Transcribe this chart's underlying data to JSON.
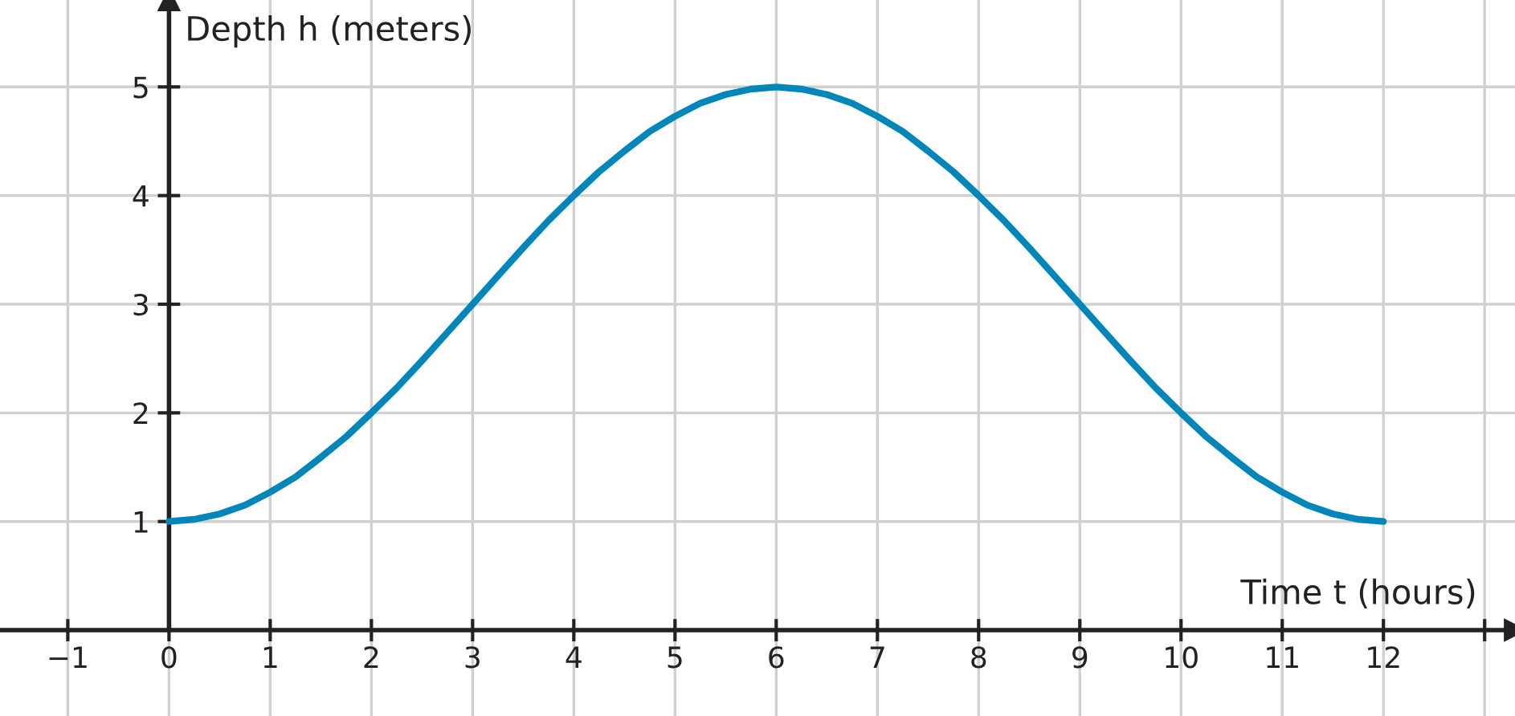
{
  "chart_data": {
    "type": "line",
    "xlabel": "Time t (hours)",
    "ylabel": "Depth h (meters)",
    "x": [
      0,
      0.25,
      0.5,
      0.75,
      1,
      1.25,
      1.5,
      1.75,
      2,
      2.25,
      2.5,
      2.75,
      3,
      3.25,
      3.5,
      3.75,
      4,
      4.25,
      4.5,
      4.75,
      5,
      5.25,
      5.5,
      5.75,
      6,
      6.25,
      6.5,
      6.75,
      7,
      7.25,
      7.5,
      7.75,
      8,
      8.25,
      8.5,
      8.75,
      9,
      9.25,
      9.5,
      9.75,
      10,
      10.25,
      10.5,
      10.75,
      11,
      11.25,
      11.5,
      11.75,
      12
    ],
    "series": [
      {
        "color": "#0086b8",
        "values": [
          1,
          1.02,
          1.07,
          1.15,
          1.27,
          1.41,
          1.59,
          1.78,
          2,
          2.23,
          2.48,
          2.74,
          3,
          3.26,
          3.52,
          3.77,
          4,
          4.22,
          4.41,
          4.59,
          4.73,
          4.85,
          4.93,
          4.98,
          5,
          4.98,
          4.93,
          4.85,
          4.73,
          4.59,
          4.41,
          4.22,
          4,
          3.77,
          3.52,
          3.26,
          3,
          2.74,
          2.48,
          2.23,
          2,
          1.78,
          1.59,
          1.41,
          1.27,
          1.15,
          1.07,
          1.02,
          1
        ]
      }
    ],
    "xlim": [
      -1.67,
      13.3
    ],
    "ylim": [
      -0.79,
      5.8
    ],
    "xticks": [
      {
        "value": -1,
        "label": "−1"
      },
      0,
      1,
      2,
      3,
      4,
      5,
      6,
      7,
      8,
      9,
      10,
      11,
      12,
      {
        "value": 13,
        "label": null
      }
    ],
    "yticks": [
      1,
      2,
      3,
      4,
      5
    ],
    "grid": true,
    "marker": "none",
    "line_style": "solid",
    "legend": false
  }
}
